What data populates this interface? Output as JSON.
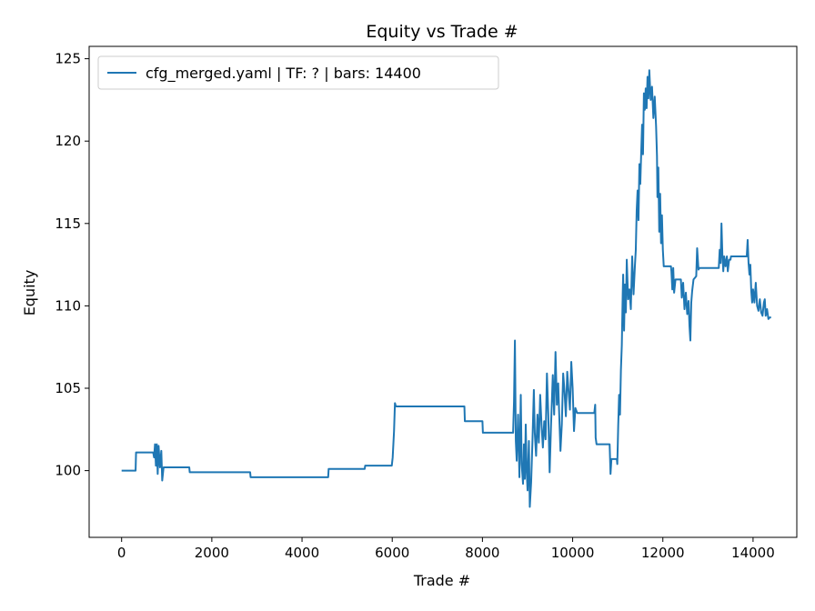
{
  "chart_data": {
    "type": "line",
    "title": "Equity vs Trade #",
    "xlabel": "Trade #",
    "ylabel": "Equity",
    "xlim": [
      -720,
      14970
    ],
    "ylim": [
      95.95,
      125.75
    ],
    "xticks": [
      0,
      2000,
      4000,
      6000,
      8000,
      10000,
      12000,
      14000
    ],
    "yticks": [
      100,
      105,
      110,
      115,
      120,
      125
    ],
    "grid": false,
    "legend_position": "upper-left",
    "series": [
      {
        "name": "cfg_merged.yaml | TF: ? | bars: 14400",
        "color": "#1f77b4",
        "points": [
          [
            0,
            100.0
          ],
          [
            310,
            100.0
          ],
          [
            320,
            101.1
          ],
          [
            700,
            101.1
          ],
          [
            720,
            100.8
          ],
          [
            740,
            101.6
          ],
          [
            760,
            100.3
          ],
          [
            780,
            101.6
          ],
          [
            800,
            99.8
          ],
          [
            820,
            101.5
          ],
          [
            850,
            100.2
          ],
          [
            880,
            101.2
          ],
          [
            900,
            99.4
          ],
          [
            930,
            100.2
          ],
          [
            1500,
            100.2
          ],
          [
            1510,
            99.9
          ],
          [
            2850,
            99.9
          ],
          [
            2860,
            99.6
          ],
          [
            4580,
            99.6
          ],
          [
            4590,
            100.1
          ],
          [
            5390,
            100.1
          ],
          [
            5400,
            100.3
          ],
          [
            5990,
            100.3
          ],
          [
            6010,
            100.8
          ],
          [
            6040,
            102.4
          ],
          [
            6060,
            104.1
          ],
          [
            6080,
            103.9
          ],
          [
            7600,
            103.9
          ],
          [
            7610,
            103.0
          ],
          [
            8000,
            103.0
          ],
          [
            8010,
            102.3
          ],
          [
            8680,
            102.3
          ],
          [
            8700,
            104.2
          ],
          [
            8720,
            107.9
          ],
          [
            8740,
            101.8
          ],
          [
            8760,
            100.6
          ],
          [
            8790,
            103.4
          ],
          [
            8820,
            99.6
          ],
          [
            8850,
            104.6
          ],
          [
            8870,
            100.4
          ],
          [
            8900,
            99.2
          ],
          [
            8920,
            101.6
          ],
          [
            8940,
            99.5
          ],
          [
            8960,
            102.8
          ],
          [
            8980,
            100.1
          ],
          [
            9000,
            98.8
          ],
          [
            9030,
            101.8
          ],
          [
            9050,
            97.8
          ],
          [
            9080,
            99.3
          ],
          [
            9110,
            101.9
          ],
          [
            9140,
            104.9
          ],
          [
            9160,
            102.3
          ],
          [
            9190,
            100.9
          ],
          [
            9220,
            103.4
          ],
          [
            9250,
            101.7
          ],
          [
            9280,
            104.6
          ],
          [
            9310,
            102.8
          ],
          [
            9340,
            101.4
          ],
          [
            9370,
            103.0
          ],
          [
            9400,
            101.9
          ],
          [
            9430,
            105.9
          ],
          [
            9460,
            103.4
          ],
          [
            9490,
            99.9
          ],
          [
            9520,
            102.7
          ],
          [
            9560,
            105.8
          ],
          [
            9590,
            103.4
          ],
          [
            9620,
            107.2
          ],
          [
            9650,
            104.0
          ],
          [
            9680,
            105.3
          ],
          [
            9700,
            103.6
          ],
          [
            9730,
            101.2
          ],
          [
            9760,
            102.8
          ],
          [
            9790,
            105.9
          ],
          [
            9820,
            104.8
          ],
          [
            9850,
            103.3
          ],
          [
            9880,
            106.0
          ],
          [
            9910,
            104.8
          ],
          [
            9940,
            103.7
          ],
          [
            9970,
            106.6
          ],
          [
            10000,
            105.0
          ],
          [
            10030,
            102.4
          ],
          [
            10060,
            103.8
          ],
          [
            10100,
            103.5
          ],
          [
            10480,
            103.5
          ],
          [
            10500,
            104.0
          ],
          [
            10510,
            102.0
          ],
          [
            10530,
            101.6
          ],
          [
            10820,
            101.6
          ],
          [
            10840,
            99.8
          ],
          [
            10860,
            100.7
          ],
          [
            10980,
            100.7
          ],
          [
            10990,
            100.4
          ],
          [
            11000,
            101.5
          ],
          [
            11010,
            102.7
          ],
          [
            11030,
            104.6
          ],
          [
            11050,
            103.4
          ],
          [
            11070,
            106.1
          ],
          [
            11090,
            107.6
          ],
          [
            11110,
            110.7
          ],
          [
            11120,
            111.9
          ],
          [
            11140,
            108.5
          ],
          [
            11160,
            111.3
          ],
          [
            11180,
            109.6
          ],
          [
            11200,
            112.8
          ],
          [
            11230,
            110.4
          ],
          [
            11260,
            111.0
          ],
          [
            11290,
            109.8
          ],
          [
            11320,
            113.0
          ],
          [
            11350,
            110.7
          ],
          [
            11380,
            112.4
          ],
          [
            11400,
            113.4
          ],
          [
            11420,
            115.8
          ],
          [
            11440,
            117.0
          ],
          [
            11460,
            115.2
          ],
          [
            11480,
            118.6
          ],
          [
            11500,
            117.4
          ],
          [
            11520,
            119.3
          ],
          [
            11540,
            121.0
          ],
          [
            11560,
            119.2
          ],
          [
            11580,
            122.9
          ],
          [
            11600,
            121.9
          ],
          [
            11620,
            123.2
          ],
          [
            11640,
            122.0
          ],
          [
            11660,
            123.9
          ],
          [
            11680,
            122.6
          ],
          [
            11700,
            124.3
          ],
          [
            11730,
            122.5
          ],
          [
            11760,
            123.3
          ],
          [
            11790,
            121.4
          ],
          [
            11820,
            122.7
          ],
          [
            11850,
            120.9
          ],
          [
            11870,
            119.1
          ],
          [
            11880,
            116.6
          ],
          [
            11900,
            118.4
          ],
          [
            11920,
            114.5
          ],
          [
            11940,
            116.8
          ],
          [
            11960,
            113.8
          ],
          [
            11980,
            115.5
          ],
          [
            12000,
            113.4
          ],
          [
            12020,
            112.4
          ],
          [
            12180,
            112.4
          ],
          [
            12190,
            112.1
          ],
          [
            12210,
            111.0
          ],
          [
            12230,
            112.3
          ],
          [
            12250,
            110.8
          ],
          [
            12280,
            111.6
          ],
          [
            12400,
            111.6
          ],
          [
            12420,
            110.5
          ],
          [
            12450,
            111.4
          ],
          [
            12480,
            109.8
          ],
          [
            12510,
            110.8
          ],
          [
            12540,
            109.5
          ],
          [
            12570,
            110.3
          ],
          [
            12590,
            108.8
          ],
          [
            12610,
            107.9
          ],
          [
            12630,
            110.2
          ],
          [
            12650,
            110.9
          ],
          [
            12680,
            111.6
          ],
          [
            12710,
            111.7
          ],
          [
            12740,
            111.8
          ],
          [
            12760,
            113.5
          ],
          [
            12790,
            112.2
          ],
          [
            12810,
            112.3
          ],
          [
            13240,
            112.3
          ],
          [
            13260,
            113.4
          ],
          [
            13280,
            112.6
          ],
          [
            13300,
            115.0
          ],
          [
            13320,
            113.1
          ],
          [
            13340,
            112.1
          ],
          [
            13360,
            113.0
          ],
          [
            13390,
            112.4
          ],
          [
            13420,
            113.0
          ],
          [
            13440,
            112.1
          ],
          [
            13470,
            112.8
          ],
          [
            13500,
            112.8
          ],
          [
            13510,
            113.0
          ],
          [
            13860,
            113.0
          ],
          [
            13880,
            114.0
          ],
          [
            13900,
            112.6
          ],
          [
            13920,
            111.9
          ],
          [
            13940,
            112.5
          ],
          [
            13960,
            110.9
          ],
          [
            13980,
            110.2
          ],
          [
            14000,
            111.0
          ],
          [
            14030,
            110.2
          ],
          [
            14060,
            111.4
          ],
          [
            14090,
            110.0
          ],
          [
            14120,
            109.7
          ],
          [
            14150,
            110.4
          ],
          [
            14180,
            109.6
          ],
          [
            14210,
            109.4
          ],
          [
            14240,
            110.2
          ],
          [
            14260,
            110.4
          ],
          [
            14280,
            109.4
          ],
          [
            14310,
            109.8
          ],
          [
            14340,
            109.2
          ],
          [
            14370,
            109.3
          ],
          [
            14400,
            109.3
          ]
        ]
      }
    ]
  }
}
